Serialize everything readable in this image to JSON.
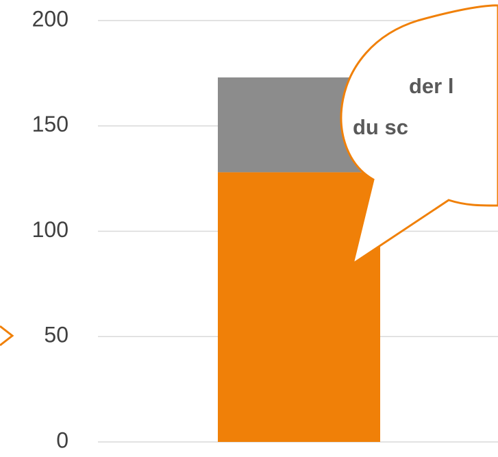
{
  "chart_data": {
    "type": "stacked_bar",
    "categories": [
      null
    ],
    "series": [
      {
        "color": "#f08008",
        "values": [
          128
        ]
      },
      {
        "color": "#8c8c8c",
        "values": [
          45
        ]
      }
    ],
    "ylim": [
      0,
      200
    ],
    "yticks": [
      0,
      50,
      100,
      150,
      200
    ],
    "grid": true,
    "annotation": {
      "lines": [
        "der l",
        "du sc"
      ]
    }
  }
}
